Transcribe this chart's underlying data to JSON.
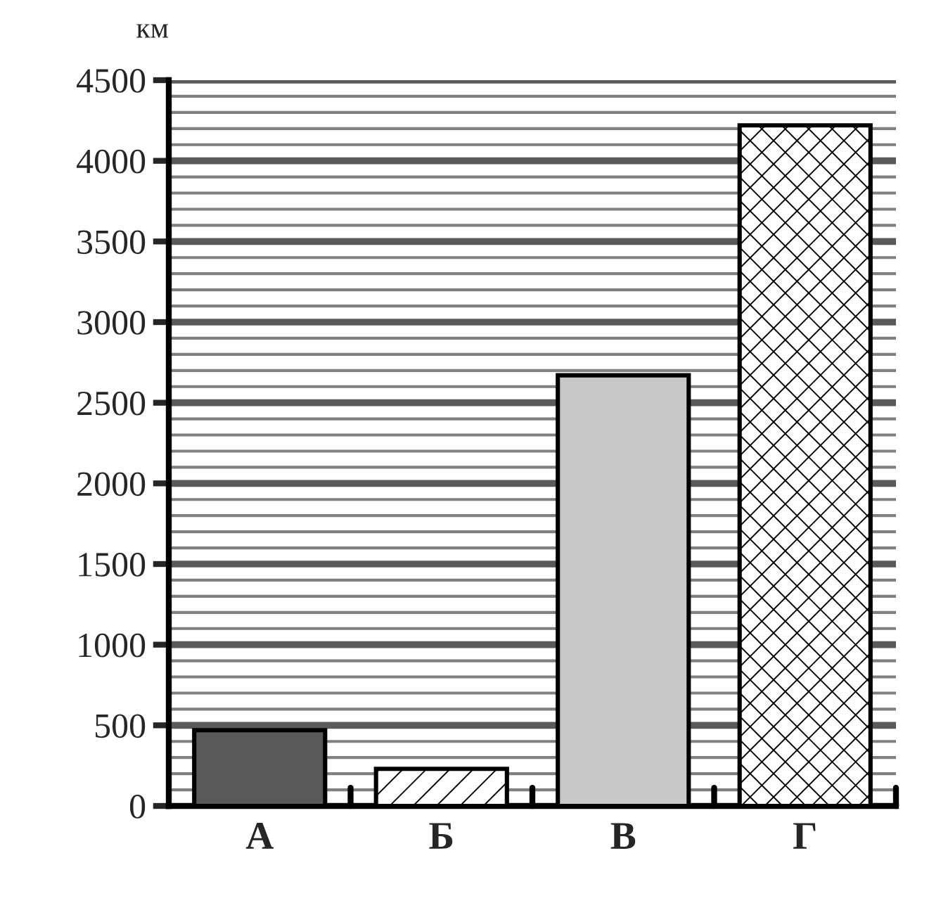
{
  "chart_data": {
    "type": "bar",
    "ylabel": "км",
    "categories": [
      "А",
      "Б",
      "В",
      "Г"
    ],
    "values": [
      470,
      230,
      2670,
      4220
    ],
    "colors": [
      "#595959",
      "#ffffff",
      "#c8c8c8",
      "#ffffff"
    ],
    "ylim": [
      0,
      4500
    ],
    "yticks": [
      0,
      500,
      1000,
      1500,
      2000,
      2500,
      3000,
      3500,
      4000,
      4500
    ],
    "grid": "y"
  }
}
